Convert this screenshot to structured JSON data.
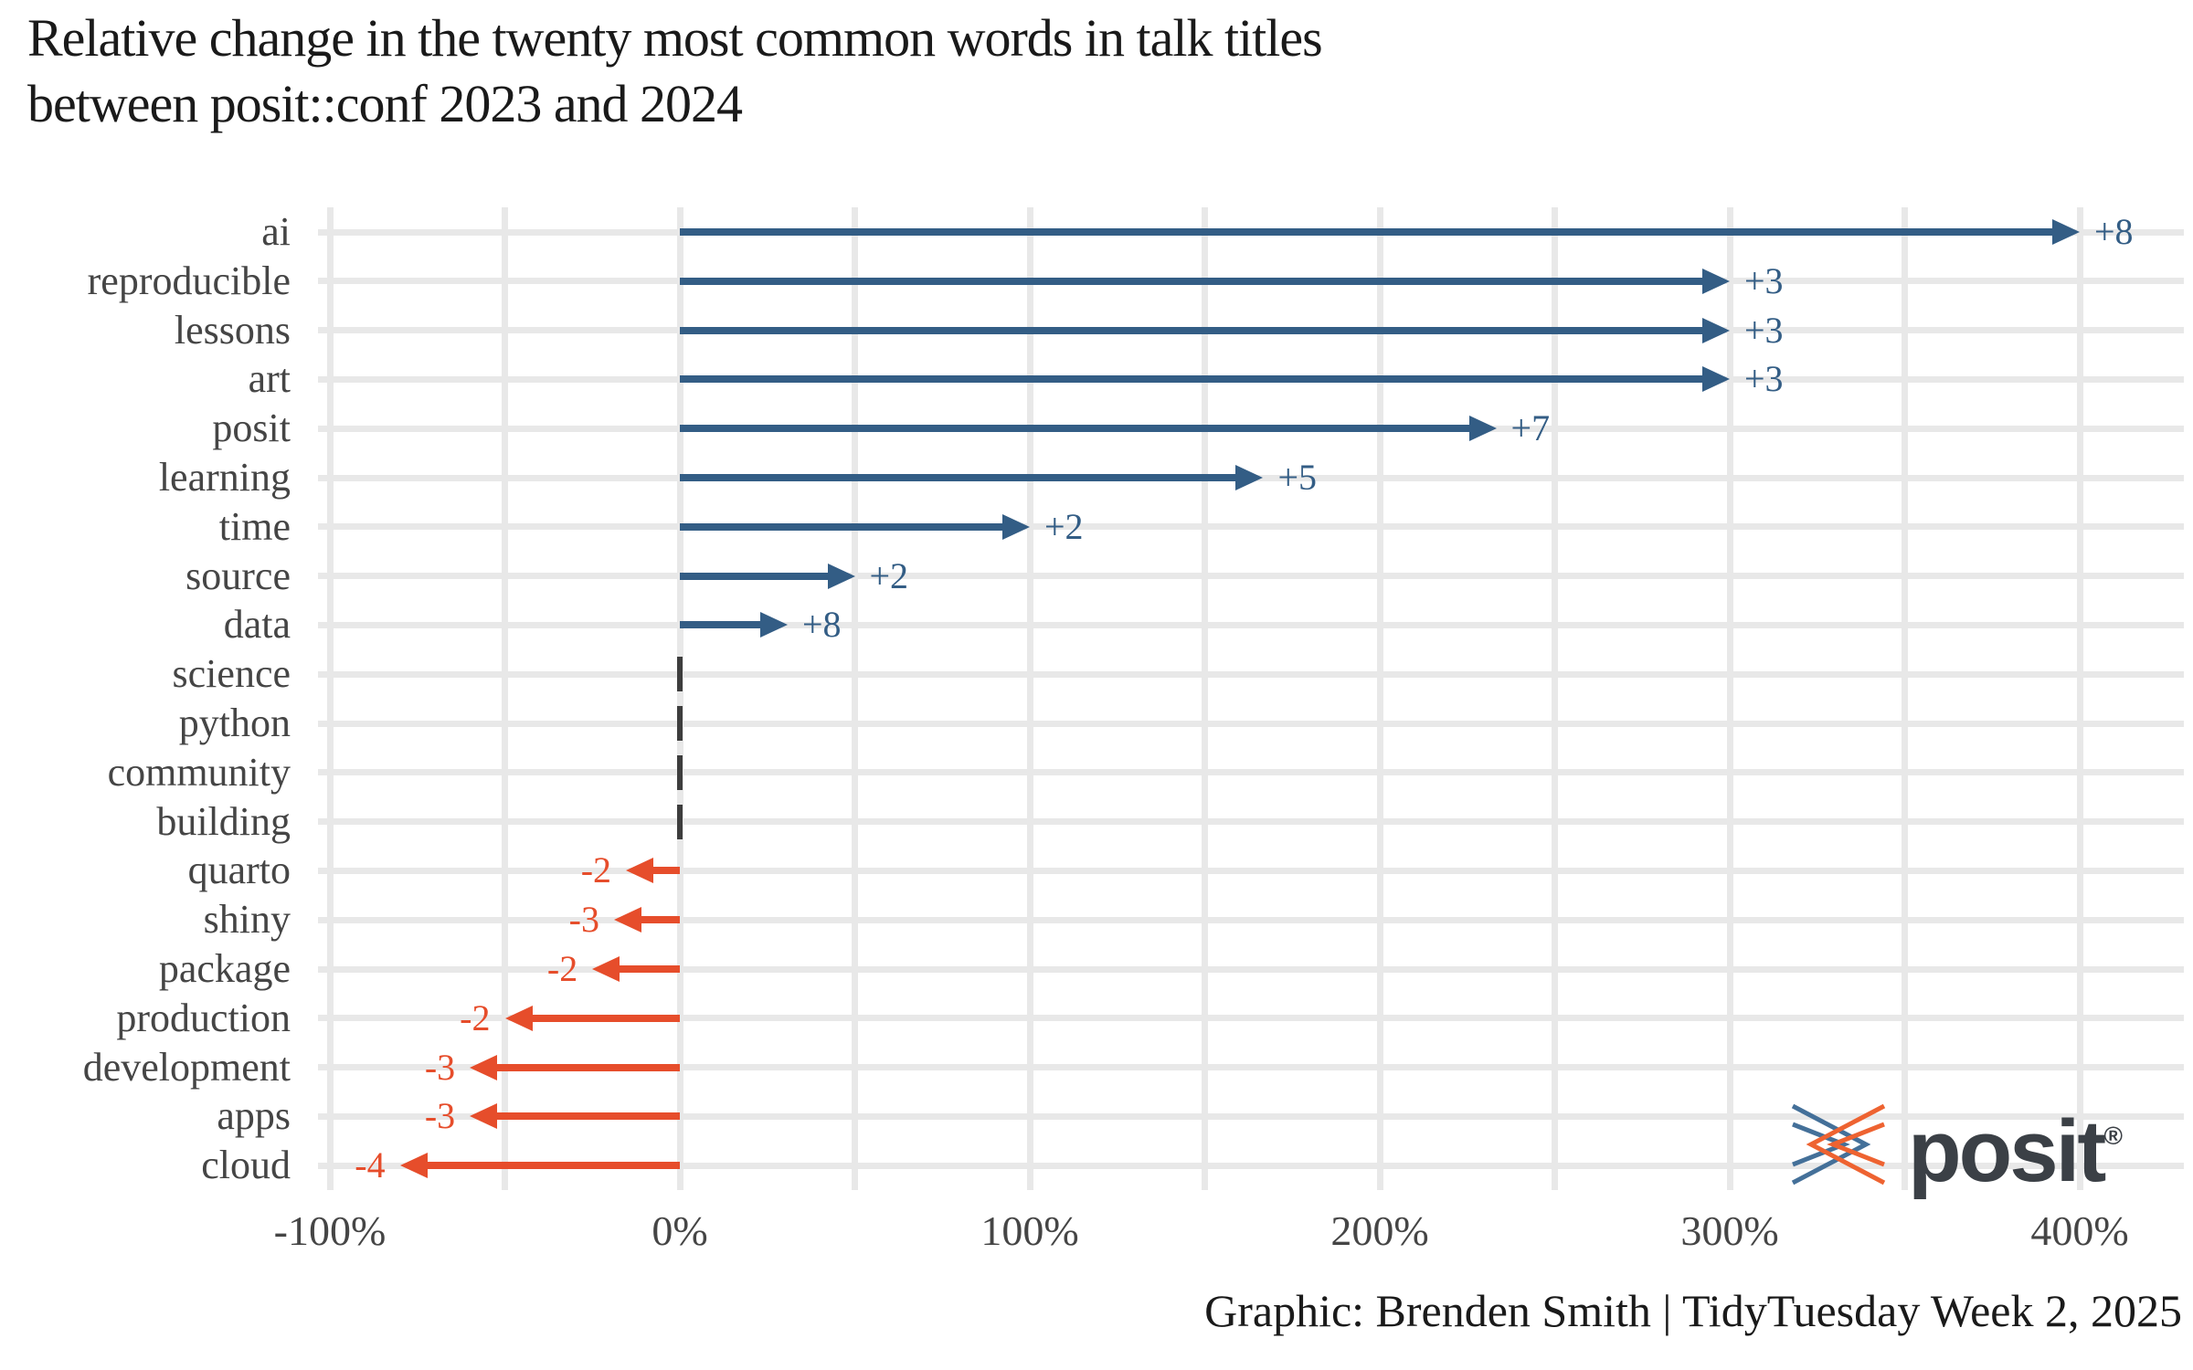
{
  "header": {
    "title_lines": [
      "Relative change in the twenty most common words in talk titles",
      "between posit::conf 2023 and 2024"
    ]
  },
  "caption": "Graphic: Brenden Smith | TidyTuesday Week 2, 2025",
  "branding": {
    "wordmark": "posit",
    "registered": "®",
    "logo_blue": "#447099",
    "logo_orange": "#EE6331"
  },
  "chart_data": {
    "type": "bar",
    "style": "arrow",
    "orientation": "horizontal",
    "title": "Relative change in the twenty most common words in talk titles between posit::conf 2023 and 2024",
    "categories": [
      "ai",
      "reproducible",
      "lessons",
      "art",
      "posit",
      "learning",
      "time",
      "source",
      "data",
      "science",
      "python",
      "community",
      "building",
      "quarto",
      "shiny",
      "package",
      "production",
      "development",
      "apps",
      "cloud"
    ],
    "series": [
      {
        "name": "relative_change_pct",
        "values": [
          400,
          300,
          300,
          300,
          233.3,
          166.7,
          100,
          50,
          30.8,
          0,
          0,
          0,
          0,
          -15.4,
          -18.8,
          -25,
          -50,
          -60,
          -60,
          -80
        ]
      },
      {
        "name": "absolute_change_labels",
        "values": [
          "+8",
          "+3",
          "+3",
          "+3",
          "+7",
          "+5",
          "+2",
          "+2",
          "+8",
          "",
          "",
          "",
          "",
          "-2",
          "-3",
          "-2",
          "-2",
          "-3",
          "-3",
          "-4"
        ]
      }
    ],
    "xlabel": "",
    "ylabel": "",
    "x_ticks": [
      "-100%",
      "0%",
      "100%",
      "200%",
      "300%",
      "400%"
    ],
    "x_tick_values": [
      -100,
      0,
      100,
      200,
      300,
      400
    ],
    "x_minor_values": [
      -50,
      50,
      150,
      250,
      350
    ],
    "xlim": [
      -103,
      430
    ],
    "grid": "on",
    "legend": "none",
    "colors": {
      "positive": "#335d85",
      "negative": "#e64d2b",
      "zero": "#3d3d3d",
      "gridline": "#e8e8e8"
    }
  }
}
